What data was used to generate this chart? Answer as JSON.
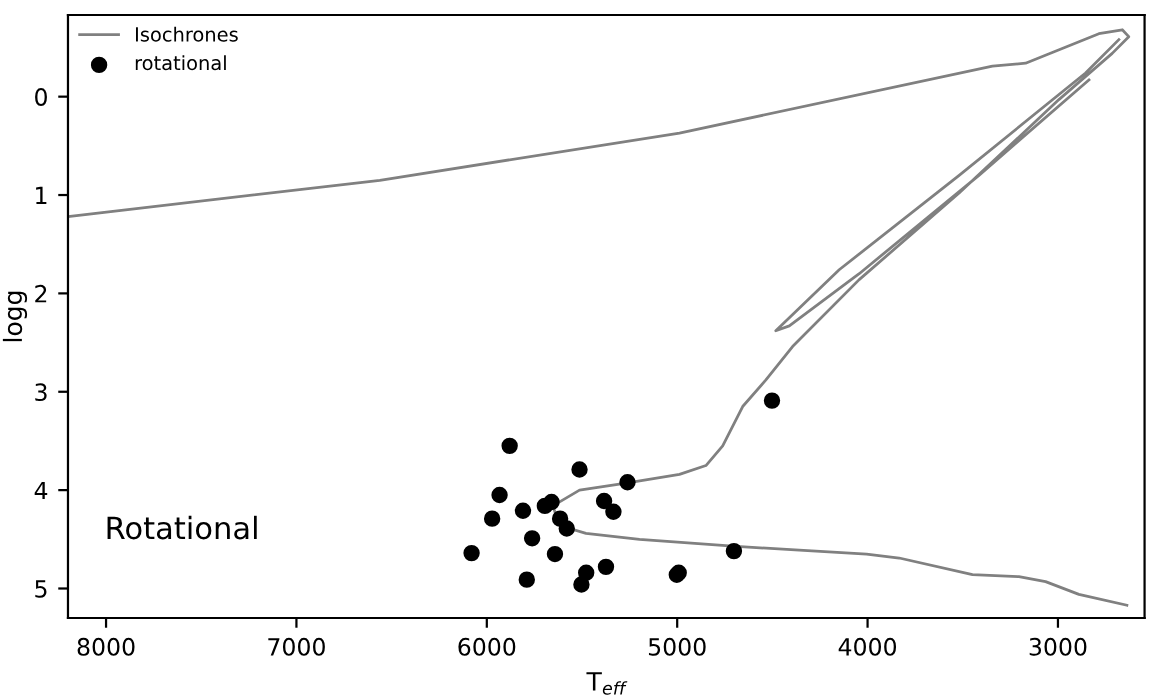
{
  "chart_data": {
    "type": "scatter",
    "xlabel": "T$_{eff}$",
    "ylabel": "logg",
    "xlim": [
      8200,
      2545
    ],
    "xticks": [
      8000,
      7000,
      6000,
      5000,
      4000,
      3000
    ],
    "ylim": [
      5.3,
      -0.83
    ],
    "yticks": [
      0,
      1,
      2,
      3,
      4,
      5
    ],
    "grid": false,
    "legend": "top left",
    "marker": "circle",
    "annotations": [
      "Rotational"
    ],
    "series": [
      {
        "name": "Isochrones",
        "type": "line",
        "color": "#808080",
        "line_style": "solid",
        "marker": "none",
        "x": [
          2638,
          2890,
          3065,
          3205,
          3449,
          3834,
          4005,
          4359,
          4708,
          5198,
          5479,
          5618,
          5653,
          5513,
          5269,
          4988,
          4849,
          4761,
          4656,
          4534,
          4394,
          4044,
          3519,
          2995,
          2715,
          2628,
          2662,
          2785,
          3170,
          3344,
          4988,
          6562,
          8200,
          null,
          2680,
          2855,
          3519,
          4149,
          4482,
          4411,
          4044,
          3415,
          2837
        ],
        "values": [
          5.17,
          5.06,
          4.93,
          4.88,
          4.86,
          4.69,
          4.65,
          4.61,
          4.57,
          4.5,
          4.44,
          4.36,
          4.16,
          4.0,
          3.93,
          3.84,
          3.75,
          3.55,
          3.15,
          2.88,
          2.54,
          1.86,
          0.98,
          0.03,
          -0.44,
          -0.61,
          -0.68,
          -0.64,
          -0.34,
          -0.31,
          0.37,
          0.85,
          1.22,
          null,
          -0.58,
          -0.24,
          0.8,
          1.76,
          2.38,
          2.33,
          1.8,
          0.8,
          -0.17
        ]
      },
      {
        "name": "rotational",
        "color": "#000000",
        "x": [
          6080,
          5880,
          5933,
          5972,
          5810,
          5762,
          5790,
          5695,
          5660,
          5615,
          5580,
          5642,
          5513,
          5478,
          5503,
          5384,
          5335,
          5374,
          5261,
          5002,
          4992,
          4702,
          4502
        ],
        "values": [
          4.64,
          3.55,
          4.05,
          4.29,
          4.21,
          4.49,
          4.91,
          4.16,
          4.12,
          4.29,
          4.39,
          4.65,
          3.79,
          4.84,
          4.96,
          4.11,
          4.22,
          4.78,
          3.92,
          4.86,
          4.84,
          4.62,
          3.09
        ]
      }
    ]
  }
}
